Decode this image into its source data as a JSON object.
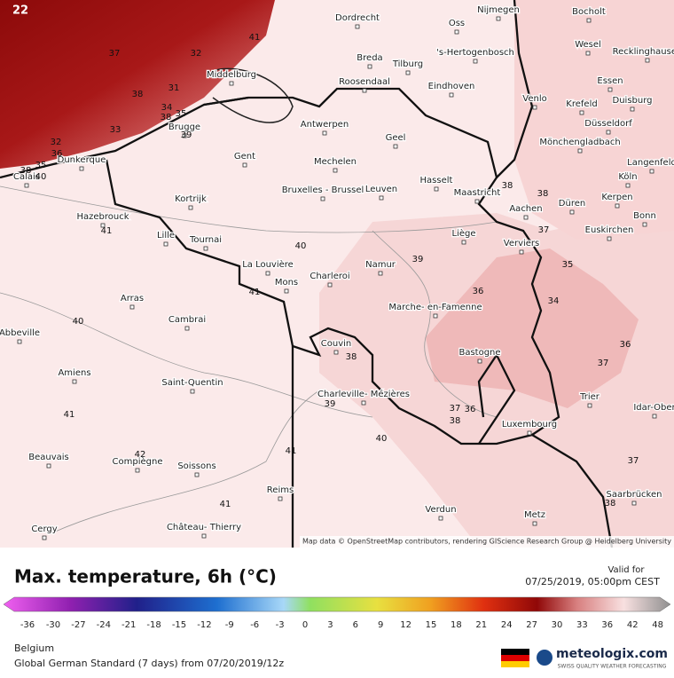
{
  "map": {
    "corner_label": "22",
    "places": [
      "Dordrecht",
      "Oss",
      "Nijmegen",
      "Bocholt",
      "Breda",
      "Tilburg",
      "'s-Hertogenbosch",
      "Wesel",
      "Recklinghausen",
      "Middelburg",
      "Roosendaal",
      "Eindhoven",
      "Essen",
      "Venlo",
      "Krefeld",
      "Duisburg",
      "Antwerpen",
      "Brugge",
      "Düsseldorf",
      "Geel",
      "Mönchengladbach",
      "Gent",
      "Mechelen",
      "Dunkerque",
      "Langenfeld",
      "Calais",
      "Bruxelles - Brussel",
      "Hasselt",
      "Leuven",
      "Köln",
      "Maastricht",
      "Kortrijk",
      "Düren",
      "Kerpen",
      "Aachen",
      "Bonn",
      "Hazebrouck",
      "Lille",
      "Tournai",
      "Liège",
      "Verviers",
      "Euskirchen",
      "La Louvière",
      "Namur",
      "Mons",
      "Charleroi",
      "Arras",
      "Marche- en-Famenne",
      "Cambrai",
      "Abbeville",
      "Couvin",
      "Bastogne",
      "Amiens",
      "Saint-Quentin",
      "Charleville- Mézières",
      "Trier",
      "Idar-Ober",
      "Luxembourg",
      "Beauvais",
      "Compiègne",
      "Soissons",
      "Saarbrücken",
      "Reims",
      "Verdun",
      "Château- Thierry",
      "Metz",
      "Cergy"
    ],
    "contour_labels": [
      41,
      37,
      32,
      38,
      31,
      34,
      35,
      38,
      33,
      32,
      36,
      35,
      38,
      40,
      39,
      38,
      38,
      41,
      37,
      35,
      40,
      39,
      41,
      36,
      34,
      40,
      36,
      37,
      38,
      39,
      37,
      36,
      38,
      41,
      40,
      41,
      42,
      37,
      41,
      38
    ],
    "attribution": "Map data © OpenStreetMap contributors, rendering GIScience Research Group @ Heidelberg University"
  },
  "footer": {
    "title": "Max. temperature, 6h (°C)",
    "valid_label": "Valid for",
    "valid_time": "07/25/2019, 05:00pm CEST",
    "scale_ticks": [
      -36,
      -30,
      -27,
      -24,
      -21,
      -18,
      -15,
      -12,
      -9,
      -6,
      -3,
      0,
      3,
      6,
      9,
      12,
      15,
      18,
      21,
      24,
      27,
      30,
      33,
      36,
      42,
      48
    ],
    "region": "Belgium",
    "model": "Global German Standard (7 days) from 07/20/2019/12z",
    "brand": "meteologix.com",
    "tagline": "SWISS QUALITY WEATHER FORECASTING"
  }
}
